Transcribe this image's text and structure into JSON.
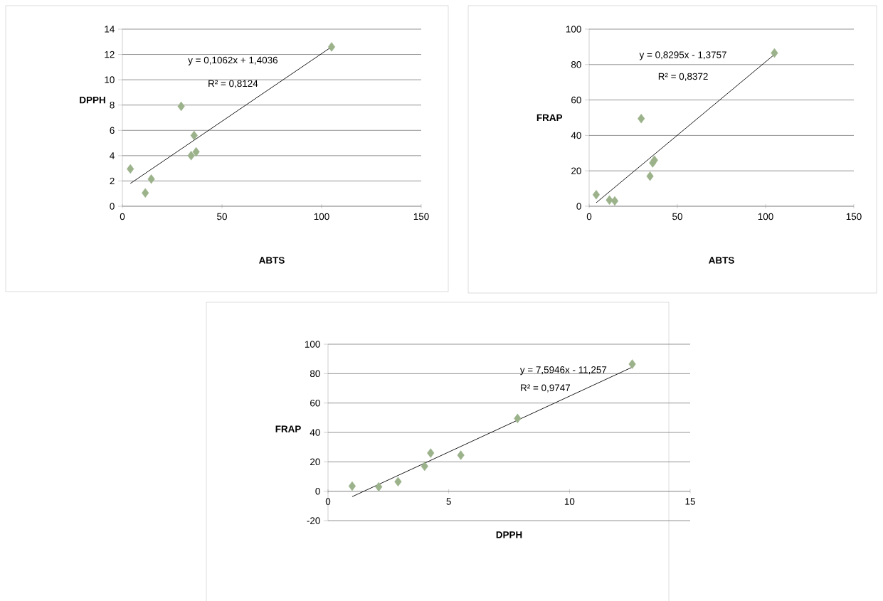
{
  "chart_data": [
    {
      "type": "scatter",
      "xlabel": "ABTS",
      "ylabel": "DPPH",
      "xlim": [
        0,
        150
      ],
      "xticks": [
        0,
        50,
        100,
        150
      ],
      "ylim": [
        0,
        14
      ],
      "yticks": [
        0,
        2,
        4,
        6,
        8,
        10,
        12,
        14
      ],
      "grid": "y",
      "marker": "diamond",
      "annotations": [
        "y = 0,1062x + 1,4036",
        "R² = 0,8124"
      ],
      "series": [
        {
          "color": "#9bb28a",
          "x": [
            4,
            11.5,
            14.5,
            29.5,
            34.5,
            36,
            37,
            105
          ],
          "values": [
            2.95,
            1.05,
            2.15,
            7.9,
            4.0,
            5.6,
            4.3,
            12.6
          ]
        },
        {
          "type": "line",
          "color": "#000000",
          "marker": "none",
          "x": [
            4,
            105
          ],
          "values": [
            1.8,
            12.6
          ]
        }
      ]
    },
    {
      "type": "scatter",
      "xlabel": "ABTS",
      "ylabel": "FRAP",
      "xlim": [
        0,
        150
      ],
      "xticks": [
        0,
        50,
        100,
        150
      ],
      "ylim": [
        0,
        100
      ],
      "yticks": [
        0,
        20,
        40,
        60,
        80,
        100
      ],
      "grid": "y",
      "marker": "diamond",
      "annotations": [
        "y = 0,8295x - 1,3757",
        "R² = 0,8372"
      ],
      "series": [
        {
          "color": "#9bb28a",
          "x": [
            4,
            11.5,
            14.5,
            29.5,
            34.5,
            36,
            37,
            105
          ],
          "values": [
            6.5,
            3.5,
            3,
            49.5,
            17,
            24.5,
            26,
            86.5
          ]
        },
        {
          "type": "line",
          "color": "#000000",
          "marker": "none",
          "x": [
            4,
            105
          ],
          "values": [
            2,
            85.7
          ]
        }
      ]
    },
    {
      "type": "scatter",
      "xlabel": "DPPH",
      "ylabel": "FRAP",
      "xlim": [
        0,
        15
      ],
      "xticks": [
        0,
        5,
        10,
        15
      ],
      "ylim": [
        -20,
        100
      ],
      "yticks": [
        -20,
        0,
        20,
        40,
        60,
        80,
        100
      ],
      "grid": "y",
      "marker": "diamond",
      "annotations": [
        "y = 7,5946x - 11,257",
        "R² = 0,9747"
      ],
      "series": [
        {
          "color": "#9bb28a",
          "x": [
            1.0,
            2.1,
            2.9,
            4.0,
            4.25,
            5.5,
            7.85,
            12.6
          ],
          "values": [
            3.5,
            3,
            6.5,
            17,
            26,
            24.5,
            49.5,
            86.5
          ]
        },
        {
          "type": "line",
          "color": "#000000",
          "marker": "none",
          "x": [
            1.0,
            12.6
          ],
          "values": [
            -3.7,
            84.4
          ]
        }
      ]
    }
  ]
}
